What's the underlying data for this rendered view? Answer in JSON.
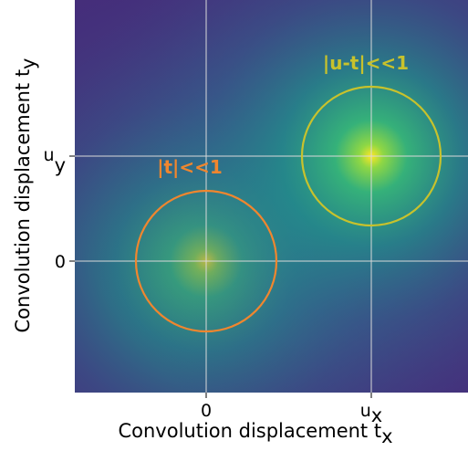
{
  "chart_data": {
    "type": "heatmap",
    "title": "",
    "xlabel": "Convolution displacement t",
    "xlabel_subscript": "x",
    "ylabel": "Convolution displacement t",
    "ylabel_subscript": "y",
    "x_ticks": [
      {
        "main": "0",
        "sub": ""
      },
      {
        "main": "u",
        "sub": "x"
      }
    ],
    "y_ticks": [
      {
        "main": "u",
        "sub": "y"
      },
      {
        "main": "0",
        "sub": ""
      }
    ],
    "colormap": "viridis",
    "grid": true,
    "peaks": [
      {
        "at": "origin",
        "value": 1.0
      },
      {
        "at": "u",
        "value": 1.0
      }
    ],
    "annotations": [
      {
        "text": "|t|<<1",
        "color": "#f0862e",
        "circle_around": "origin"
      },
      {
        "text": "|u-t|<<1",
        "color": "#c8c22c",
        "circle_around": "u"
      }
    ]
  }
}
